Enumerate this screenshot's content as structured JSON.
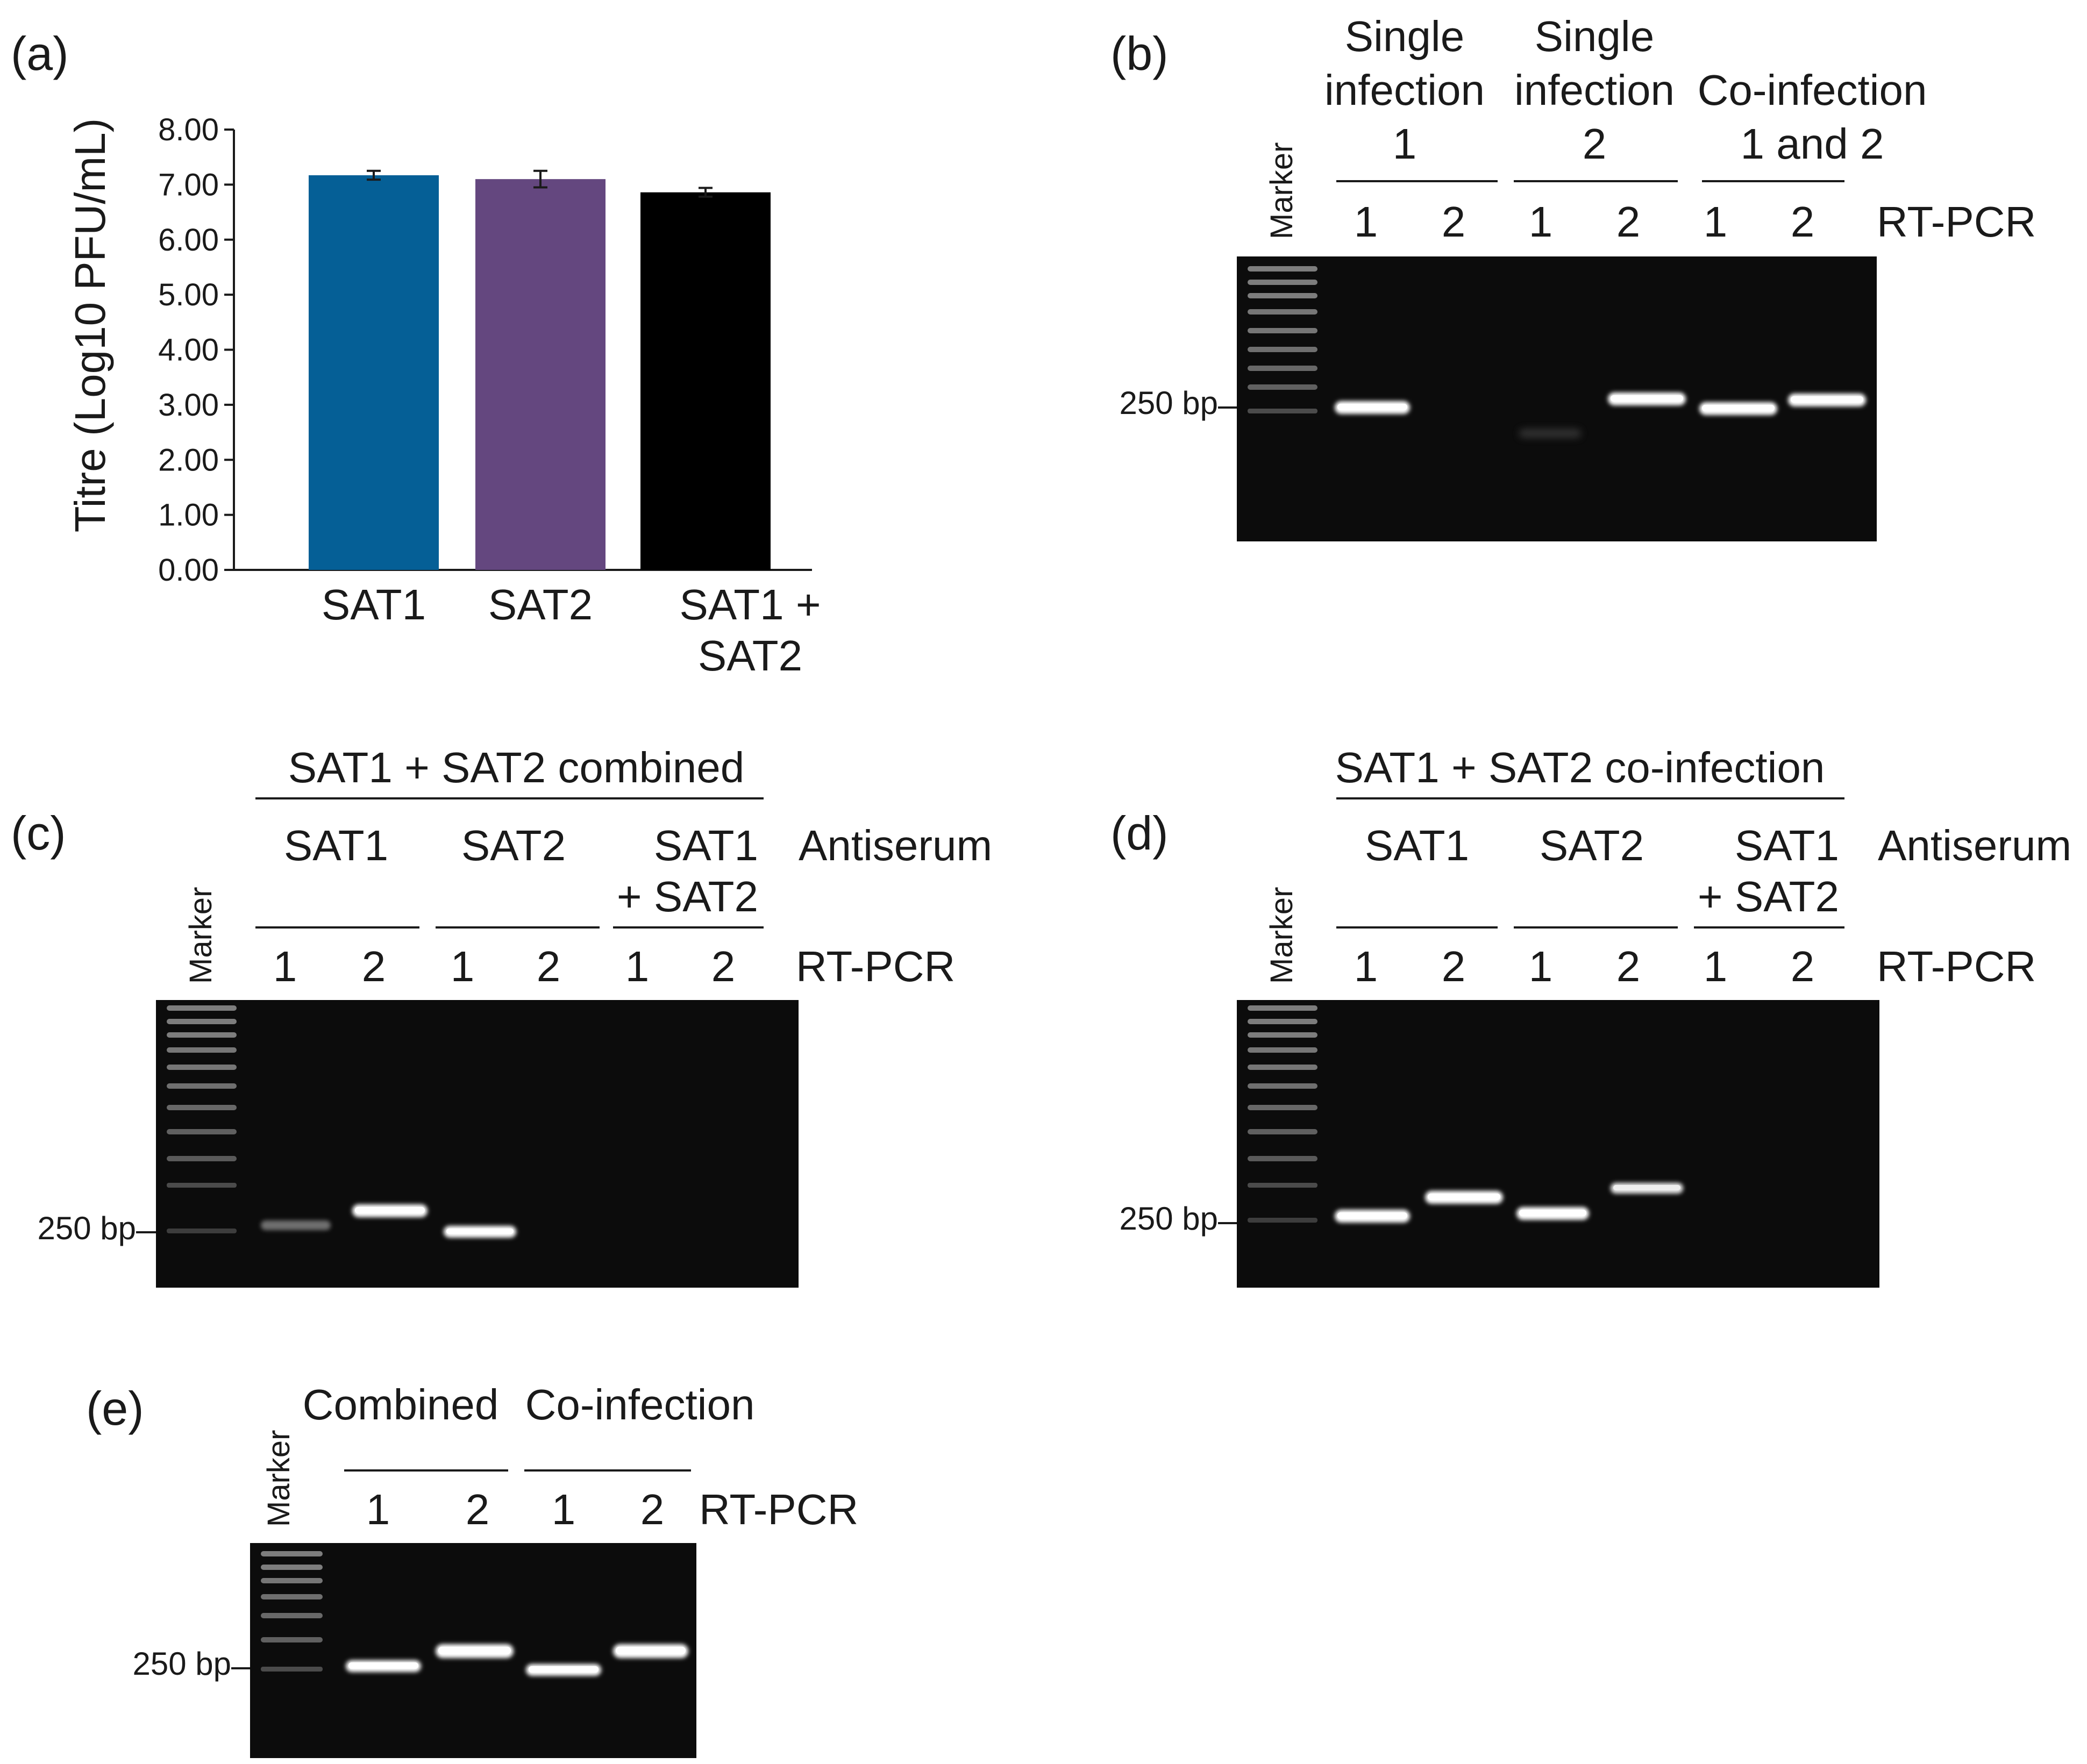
{
  "chart_data": {
    "type": "bar",
    "title": "",
    "panel_label": "(a)",
    "categories": [
      "SAT1",
      "SAT2",
      "SAT1 + SAT2"
    ],
    "category_lines": [
      [
        "SAT1"
      ],
      [
        "SAT2"
      ],
      [
        "SAT1 +",
        "SAT2"
      ]
    ],
    "values": [
      7.17,
      7.1,
      6.86
    ],
    "errors": [
      0.08,
      0.15,
      0.08
    ],
    "colors": [
      "#055f96",
      "#64477f",
      "#000000"
    ],
    "xlabel": "",
    "ylabel": "Titre (Log10 PFU/mL)",
    "ylim": [
      0,
      8
    ],
    "yticks": [
      "0.00",
      "1.00",
      "2.00",
      "3.00",
      "4.00",
      "5.00",
      "6.00",
      "7.00",
      "8.00"
    ],
    "grid": false
  },
  "panel_b": {
    "label": "(b)",
    "marker": "Marker",
    "size_label": "250 bp",
    "rtpcr_label": "RT-PCR",
    "groups": [
      {
        "line1": "Single",
        "line2": "infection",
        "line3": "1"
      },
      {
        "line1": "Single",
        "line2": "infection",
        "line3": "2"
      },
      {
        "line1": "Co-infection",
        "line2": "1 and 2",
        "line3": ""
      }
    ],
    "lanes": [
      "1",
      "2",
      "1",
      "2",
      "1",
      "2"
    ]
  },
  "panel_c": {
    "label": "(c)",
    "marker": "Marker",
    "size_label": "250 bp",
    "top_label": "SAT1 + SAT2 combined",
    "antiserum_label": "Antiserum",
    "rtpcr_label": "RT-PCR",
    "groups": [
      {
        "line1": "SAT1",
        "line2": ""
      },
      {
        "line1": "SAT2",
        "line2": ""
      },
      {
        "line1": "SAT1",
        "line2": "+ SAT2"
      }
    ],
    "lanes": [
      "1",
      "2",
      "1",
      "2",
      "1",
      "2"
    ]
  },
  "panel_d": {
    "label": "(d)",
    "marker": "Marker",
    "size_label": "250 bp",
    "top_label": "SAT1 + SAT2 co-infection",
    "antiserum_label": "Antiserum",
    "rtpcr_label": "RT-PCR",
    "groups": [
      {
        "line1": "SAT1",
        "line2": ""
      },
      {
        "line1": "SAT2",
        "line2": ""
      },
      {
        "line1": "SAT1",
        "line2": "+ SAT2"
      }
    ],
    "lanes": [
      "1",
      "2",
      "1",
      "2",
      "1",
      "2"
    ]
  },
  "panel_e": {
    "label": "(e)",
    "marker": "Marker",
    "size_label": "250 bp",
    "rtpcr_label": "RT-PCR",
    "groups": [
      {
        "line1": "Combined"
      },
      {
        "line1": "Co-infection"
      }
    ],
    "lanes": [
      "1",
      "2",
      "1",
      "2"
    ]
  }
}
